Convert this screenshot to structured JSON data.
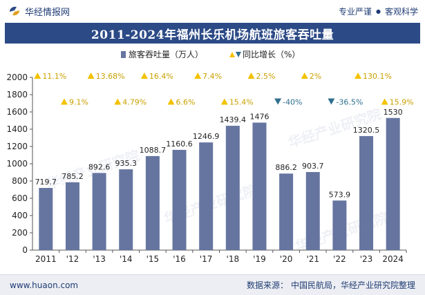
{
  "header": {
    "brand": "华经情报网",
    "tagline_left": "专业严谨",
    "tagline_right": "客观科学"
  },
  "title": "2011-2024年福州长乐机场航班旅客吞吐量",
  "footer": {
    "website": "www.huaon.com",
    "source_label": "数据来源：",
    "source_text": "中国民航局，华经产业研究院整理"
  },
  "watermark": "华经产业研究院",
  "colors": {
    "bar": "#6675a0",
    "up_marker": "#f2c200",
    "down_marker": "#2f6f8f",
    "title_bg": "#2c4a86",
    "axis": "#555555"
  },
  "chart_data": {
    "type": "bar",
    "categories": [
      "2011",
      "'12",
      "'13",
      "'14",
      "'15",
      "'16",
      "'17",
      "'18",
      "'19",
      "'20",
      "'21",
      "'22",
      "'23",
      "2024"
    ],
    "series": [
      {
        "name": "旅客吞吐量（万人）",
        "values": [
          719.7,
          785.2,
          892.6,
          935.3,
          1088.7,
          1160.6,
          1246.9,
          1439.4,
          1476,
          886.2,
          903.7,
          573.9,
          1320.5,
          1530
        ],
        "value_labels": [
          "719.7",
          "785.2",
          "892.6",
          "935.3",
          "1088.7",
          "1160.6",
          "1246.9",
          "1439.4",
          "1476",
          "886.2",
          "903.7",
          "573.9",
          "1320.5",
          "1530"
        ]
      },
      {
        "name": "同比增长（%）",
        "values": [
          11.1,
          9.1,
          13.68,
          4.79,
          16.4,
          6.6,
          7.4,
          15.4,
          2.5,
          -40,
          2,
          -36.5,
          130.1,
          15.9
        ],
        "value_labels": [
          "11.1%",
          "9.1%",
          "13.68%",
          "4.79%",
          "16.4%",
          "6.6%",
          "7.4%",
          "15.4%",
          "2.5%",
          "-40%",
          "2%",
          "-36.5%",
          "130.1%",
          "15.9%"
        ],
        "directions": [
          "up",
          "up",
          "up",
          "up",
          "up",
          "up",
          "up",
          "up",
          "up",
          "down",
          "up",
          "down",
          "up",
          "up"
        ],
        "label_rows": [
          "top",
          "bottom",
          "top",
          "bottom",
          "top",
          "bottom",
          "top",
          "bottom",
          "top",
          "bottom",
          "top",
          "bottom",
          "top",
          "bottom"
        ]
      }
    ],
    "legend": [
      {
        "marker": "bar",
        "label": "旅客吞吐量（万人）"
      },
      {
        "marker": "triangles",
        "label": "同比增长（%）"
      }
    ],
    "legend_position": "top-center",
    "ylim": [
      0,
      2000
    ],
    "yticks": [
      0,
      200,
      400,
      600,
      800,
      1000,
      1200,
      1400,
      1600,
      1800,
      2000
    ],
    "grid": false,
    "title": "2011-2024年福州长乐机场航班旅客吞吐量",
    "xlabel": "",
    "ylabel": ""
  }
}
